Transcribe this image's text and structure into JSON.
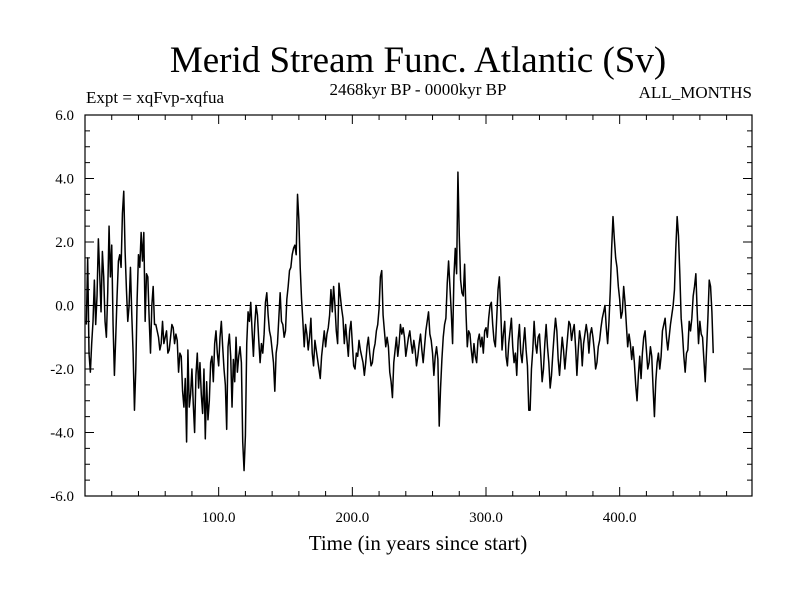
{
  "chart_data": {
    "type": "line",
    "title": "Merid Stream Func. Atlantic (Sv)",
    "subtitle_left": "Expt = xqFvp-xqfua",
    "subtitle_center": "2468kyr BP - 0000kyr BP",
    "subtitle_right": "ALL_MONTHS",
    "xlabel": "Time (in years since start)",
    "ylabel": "",
    "xlim": [
      0,
      499
    ],
    "ylim": [
      -6,
      6
    ],
    "x_ticks": [
      100,
      200,
      300,
      400
    ],
    "x_tick_labels": [
      "100.0",
      "200.0",
      "300.0",
      "400.0"
    ],
    "y_ticks": [
      -6,
      -4,
      -2,
      0,
      2,
      4,
      6
    ],
    "y_tick_labels": [
      "-6.0",
      "-4.0",
      "-2.0",
      "0.0",
      "2.0",
      "4.0",
      "6.0"
    ],
    "zero_line": "dashed",
    "series": [
      {
        "name": "Merid Stream Func. Atlantic",
        "color": "#000000",
        "x_start": 1,
        "x_step": 1,
        "values": [
          -0.6,
          1.5,
          -1.5,
          -2.1,
          -1.2,
          -0.5,
          0.8,
          -0.6,
          0.3,
          2.1,
          1.0,
          -0.2,
          1.7,
          0.9,
          -0.5,
          -1.0,
          0.4,
          2.5,
          0.9,
          1.9,
          -0.6,
          -2.2,
          -1.0,
          0.3,
          1.4,
          1.6,
          1.2,
          2.9,
          3.6,
          1.7,
          0.5,
          -0.5,
          0.0,
          1.2,
          -0.3,
          -1.5,
          -3.3,
          -2.0,
          0.2,
          1.6,
          1.2,
          2.3,
          1.4,
          2.3,
          -0.5,
          1.0,
          0.9,
          -0.4,
          -1.5,
          0.0,
          0.6,
          -0.6,
          -0.6,
          -0.8,
          -1.0,
          -1.4,
          -1.2,
          -0.5,
          -1.2,
          -1.0,
          -0.8,
          -1.5,
          -1.4,
          -1.0,
          -0.6,
          -0.7,
          -1.2,
          -0.9,
          -1.1,
          -2.1,
          -1.5,
          -1.6,
          -2.7,
          -3.2,
          -2.3,
          -4.3,
          -1.4,
          -3.2,
          -2.8,
          -2.0,
          -3.1,
          -4.0,
          -2.2,
          -1.5,
          -2.6,
          -1.8,
          -2.8,
          -3.4,
          -2.0,
          -4.2,
          -2.4,
          -3.6,
          -3.0,
          -1.8,
          -1.6,
          -2.4,
          -1.2,
          -0.8,
          -1.5,
          -1.9,
          -1.0,
          -0.5,
          -1.3,
          -2.0,
          -2.5,
          -3.9,
          -1.3,
          -0.9,
          -1.6,
          -3.2,
          -1.7,
          -2.4,
          -1.0,
          -2.1,
          -1.6,
          -1.3,
          -1.8,
          -4.3,
          -5.2,
          -4.1,
          -1.2,
          -0.2,
          -0.5,
          0.1,
          -0.8,
          -1.6,
          -0.6,
          0.0,
          -0.3,
          -1.1,
          -1.8,
          -1.2,
          -1.5,
          -0.9,
          0.1,
          0.4,
          -0.3,
          -0.8,
          -1.0,
          -1.4,
          -1.8,
          -2.7,
          -1.5,
          -1.2,
          -0.4,
          0.4,
          -0.5,
          -0.6,
          -1.0,
          -0.8,
          0.2,
          0.6,
          1.1,
          1.2,
          1.6,
          1.8,
          1.9,
          1.6,
          3.5,
          2.7,
          1.2,
          0.2,
          -0.5,
          -1.3,
          -0.6,
          -0.9,
          -1.4,
          -1.0,
          -0.4,
          -1.5,
          -1.9,
          -1.1,
          -1.4,
          -1.7,
          -2.0,
          -2.3,
          -1.6,
          -1.2,
          -0.8,
          -1.3,
          -0.9,
          -0.7,
          -0.3,
          0.5,
          -0.2,
          0.6,
          0.0,
          -0.8,
          -1.2,
          0.7,
          0.3,
          -0.1,
          -0.4,
          -1.2,
          -0.6,
          -1.1,
          -1.6,
          -0.8,
          -0.5,
          -1.2,
          -1.9,
          -2.0,
          -1.5,
          -1.6,
          -1.1,
          -1.4,
          -1.6,
          -1.8,
          -2.2,
          -1.8,
          -1.3,
          -1.0,
          -1.5,
          -1.9,
          -1.8,
          -1.4,
          -1.2,
          -0.8,
          -0.6,
          -0.1,
          0.9,
          1.1,
          -0.3,
          -0.8,
          -1.3,
          -1.0,
          -1.3,
          -2.1,
          -2.4,
          -2.9,
          -1.8,
          -1.4,
          -1.0,
          -1.6,
          -1.2,
          -0.6,
          -0.9,
          -0.7,
          -1.0,
          -1.6,
          -1.3,
          -1.0,
          -0.8,
          -1.2,
          -1.5,
          -1.1,
          -1.4,
          -1.9,
          -1.6,
          -1.2,
          -0.9,
          -1.4,
          -1.8,
          -1.3,
          -0.8,
          -0.5,
          -0.2,
          -0.9,
          -1.1,
          -1.5,
          -2.2,
          -1.6,
          -1.3,
          -1.7,
          -3.8,
          -2.6,
          -1.7,
          -1.0,
          -0.6,
          -0.4,
          0.7,
          1.4,
          0.6,
          -0.2,
          -1.2,
          0.9,
          1.8,
          1.0,
          4.2,
          2.2,
          0.8,
          0.4,
          0.3,
          1.3,
          -0.2,
          -1.3,
          -0.8,
          -0.9,
          -1.4,
          -1.8,
          -1.2,
          -1.6,
          -1.8,
          -1.1,
          -0.9,
          -1.3,
          -1.0,
          -1.5,
          -0.8,
          -0.7,
          -1.0,
          -0.4,
          0.0,
          0.1,
          -0.6,
          -1.1,
          -1.3,
          -0.4,
          0.5,
          0.9,
          -0.1,
          -1.4,
          -0.9,
          -0.5,
          -1.6,
          -1.9,
          -1.2,
          -0.8,
          -0.4,
          -1.3,
          -1.8,
          -1.5,
          -2.2,
          -1.1,
          -0.6,
          -1.5,
          -1.8,
          -1.2,
          -0.7,
          -1.4,
          -1.9,
          -3.3,
          -3.3,
          -2.0,
          -1.4,
          -0.5,
          -1.2,
          -1.5,
          -1.0,
          -0.9,
          -1.6,
          -2.4,
          -2.0,
          -1.2,
          -0.6,
          -1.3,
          -1.8,
          -2.6,
          -2.2,
          -1.5,
          -0.9,
          -0.4,
          -0.8,
          -1.7,
          -2.2,
          -1.6,
          -1.0,
          -1.4,
          -2.0,
          -1.5,
          -1.0,
          -0.5,
          -0.6,
          -1.1,
          -0.8,
          -0.6,
          -1.3,
          -2.2,
          -1.4,
          -0.8,
          -1.1,
          -1.9,
          -1.2,
          -0.9,
          -0.6,
          -0.9,
          -1.5,
          -0.9,
          -0.7,
          -1.0,
          -1.4,
          -2.0,
          -1.8,
          -1.3,
          -1.1,
          -0.7,
          -0.4,
          -0.2,
          0.0,
          -0.7,
          -1.2,
          -0.5,
          0.5,
          1.8,
          2.8,
          2.1,
          1.5,
          1.2,
          0.6,
          0.2,
          -0.4,
          -0.2,
          0.6,
          0.1,
          -0.6,
          -1.3,
          -0.9,
          -1.2,
          -1.7,
          -1.3,
          -1.8,
          -2.5,
          -3.0,
          -2.2,
          -1.6,
          -2.3,
          -1.5,
          -1.0,
          -0.8,
          -1.4,
          -2.0,
          -1.8,
          -1.3,
          -1.6,
          -2.6,
          -3.5,
          -2.4,
          -1.8,
          -1.5,
          -2.0,
          -1.6,
          -0.8,
          -0.6,
          -0.4,
          -1.0,
          -1.4,
          -1.0,
          -0.6,
          -0.3,
          0.0,
          0.5,
          1.8,
          2.8,
          2.2,
          1.0,
          -0.4,
          -0.9,
          -1.6,
          -2.1,
          -1.5,
          -1.4,
          -0.5,
          -0.8,
          -0.4,
          0.3,
          0.6,
          1.0,
          -0.2,
          -1.2,
          -0.5,
          -0.9,
          -1.0,
          -1.7,
          -2.4,
          -1.4,
          -0.4,
          0.8,
          0.6,
          -0.2,
          -1.5
        ]
      }
    ]
  }
}
